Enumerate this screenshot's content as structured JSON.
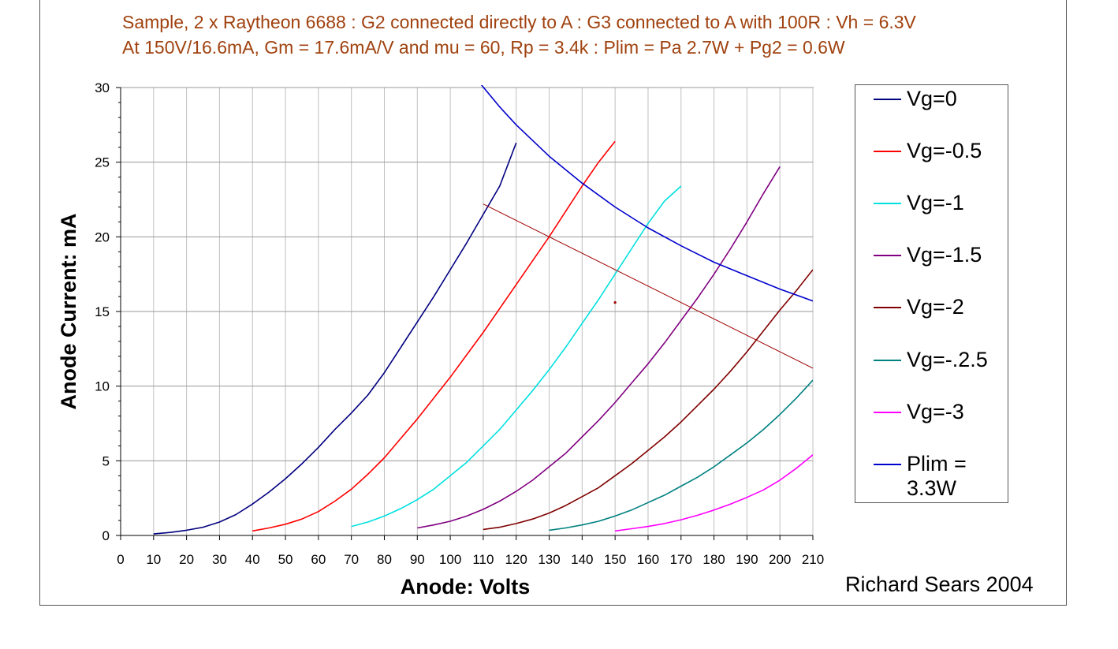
{
  "header": {
    "title_line1": "Sample, 2 x Raytheon 6688 : G2 connected directly to A : G3 connected to A with 100R : Vh = 6.3V",
    "title_line2": "At 150V/16.6mA, Gm = 17.6mA/V and mu = 60, Rp = 3.4k : Plim = Pa 2.7W + Pg2 = 0.6W"
  },
  "footer": {
    "credit": "Richard Sears 2004"
  },
  "chart_data": {
    "type": "line",
    "title": "Sample, 2 x Raytheon 6688 : G2 connected directly to A : G3 connected to A with 100R : Vh = 6.3V",
    "subtitle": "At 150V/16.6mA, Gm = 17.6mA/V and mu = 60, Rp = 3.4k : Plim = Pa 2.7W + Pg2 = 0.6W",
    "xlabel": "Anode: Volts",
    "ylabel": "Anode Current: mA",
    "xlim": [
      0,
      210
    ],
    "ylim": [
      0,
      30
    ],
    "xticks": [
      0,
      10,
      20,
      30,
      40,
      50,
      60,
      70,
      80,
      90,
      100,
      110,
      120,
      130,
      140,
      150,
      160,
      170,
      180,
      190,
      200,
      210
    ],
    "yticks": [
      0,
      5,
      10,
      15,
      20,
      25,
      30
    ],
    "grid": true,
    "legend_position": "right",
    "series": [
      {
        "name": "Vg=0",
        "color": "#000080",
        "x": [
          10,
          15,
          20,
          25,
          30,
          35,
          40,
          45,
          50,
          55,
          60,
          65,
          70,
          75,
          80,
          85,
          90,
          95,
          100,
          105,
          110,
          115,
          120
        ],
        "y": [
          0.1,
          0.2,
          0.35,
          0.55,
          0.9,
          1.4,
          2.1,
          2.9,
          3.8,
          4.8,
          5.9,
          7.1,
          8.2,
          9.4,
          10.9,
          12.6,
          14.3,
          16.0,
          17.8,
          19.6,
          21.5,
          23.4,
          26.3
        ]
      },
      {
        "name": "Vg=-0.5",
        "color": "#ff0000",
        "x": [
          40,
          45,
          50,
          55,
          60,
          65,
          70,
          75,
          80,
          85,
          90,
          95,
          100,
          105,
          110,
          115,
          120,
          125,
          130,
          135,
          140,
          145,
          150
        ],
        "y": [
          0.3,
          0.5,
          0.75,
          1.1,
          1.6,
          2.3,
          3.1,
          4.1,
          5.2,
          6.5,
          7.8,
          9.2,
          10.6,
          12.1,
          13.6,
          15.2,
          16.8,
          18.4,
          20.0,
          21.7,
          23.4,
          25.0,
          26.4
        ]
      },
      {
        "name": "Vg=-1",
        "color": "#00e0e0",
        "x": [
          70,
          75,
          80,
          85,
          90,
          95,
          100,
          105,
          110,
          115,
          120,
          125,
          130,
          135,
          140,
          145,
          150,
          155,
          160,
          165,
          170
        ],
        "y": [
          0.6,
          0.9,
          1.3,
          1.8,
          2.4,
          3.1,
          4.0,
          4.9,
          6.0,
          7.1,
          8.4,
          9.7,
          11.1,
          12.6,
          14.2,
          15.8,
          17.5,
          19.2,
          20.9,
          22.4,
          23.4
        ]
      },
      {
        "name": "Vg=-1.5",
        "color": "#800080",
        "x": [
          90,
          95,
          100,
          105,
          110,
          115,
          120,
          125,
          130,
          135,
          140,
          145,
          150,
          155,
          160,
          165,
          170,
          175,
          180,
          185,
          190,
          195,
          200
        ],
        "y": [
          0.5,
          0.7,
          0.95,
          1.3,
          1.75,
          2.3,
          2.95,
          3.7,
          4.6,
          5.5,
          6.6,
          7.7,
          8.9,
          10.2,
          11.5,
          12.9,
          14.4,
          15.9,
          17.5,
          19.2,
          21.0,
          22.9,
          24.7
        ]
      },
      {
        "name": "Vg=-2",
        "color": "#800000",
        "x": [
          110,
          115,
          120,
          125,
          130,
          135,
          140,
          145,
          150,
          155,
          160,
          165,
          170,
          175,
          180,
          185,
          190,
          195,
          200,
          205,
          210
        ],
        "y": [
          0.4,
          0.55,
          0.8,
          1.1,
          1.5,
          2.0,
          2.6,
          3.2,
          4.0,
          4.8,
          5.7,
          6.6,
          7.6,
          8.7,
          9.8,
          11.0,
          12.3,
          13.7,
          15.1,
          16.4,
          17.8
        ]
      },
      {
        "name": "Vg=-.2.5",
        "color": "#008080",
        "x": [
          130,
          135,
          140,
          145,
          150,
          155,
          160,
          165,
          170,
          175,
          180,
          185,
          190,
          195,
          200,
          205,
          210
        ],
        "y": [
          0.35,
          0.5,
          0.7,
          0.95,
          1.3,
          1.7,
          2.2,
          2.7,
          3.3,
          3.9,
          4.6,
          5.4,
          6.2,
          7.1,
          8.1,
          9.2,
          10.4
        ]
      },
      {
        "name": "Vg=-3",
        "color": "#ff00ff",
        "x": [
          150,
          155,
          160,
          165,
          170,
          175,
          180,
          185,
          190,
          195,
          200,
          205,
          210
        ],
        "y": [
          0.3,
          0.45,
          0.6,
          0.8,
          1.05,
          1.35,
          1.7,
          2.1,
          2.55,
          3.05,
          3.7,
          4.5,
          5.4
        ]
      },
      {
        "name": "Plim = 3.3W",
        "color": "#0000cd",
        "x": [
          109,
          115,
          120,
          130,
          140,
          150,
          160,
          170,
          180,
          190,
          200,
          210
        ],
        "y": [
          30.3,
          28.7,
          27.5,
          25.4,
          23.6,
          22.0,
          20.6,
          19.4,
          18.3,
          17.4,
          16.5,
          15.7
        ]
      },
      {
        "color": "#a00000",
        "x": [
          110,
          210
        ],
        "y": [
          22.2,
          11.2
        ]
      }
    ]
  }
}
